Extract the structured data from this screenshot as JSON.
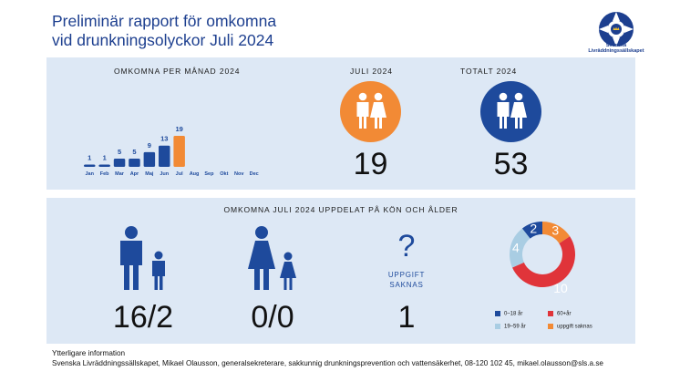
{
  "header": {
    "title_line1": "Preliminär rapport för omkomna",
    "title_line2": "vid drunkningsolyckor Juli 2024",
    "logo_line1": "Svenska",
    "logo_line2": "Livräddningssällskapet",
    "logo_icon": "lifebuoy-crown-icon"
  },
  "top_panel": {
    "monthly_label": "OMKOMNA PER MÅNAD 2024",
    "july_label": "JULI 2024",
    "july_value": "19",
    "total_label": "TOTALT 2024",
    "total_value": "53",
    "july_icon": "man-woman-icon",
    "total_icon": "man-woman-icon"
  },
  "chart_data": [
    {
      "type": "bar",
      "title": "OMKOMNA PER MÅNAD 2024",
      "categories": [
        "Jan",
        "Feb",
        "Mar",
        "Apr",
        "Maj",
        "Jun",
        "Jul",
        "Aug",
        "Sep",
        "Okt",
        "Nov",
        "Dec"
      ],
      "values": [
        1,
        1,
        5,
        5,
        9,
        13,
        19,
        null,
        null,
        null,
        null,
        null
      ],
      "colors": {
        "default": "#1e4a9c",
        "highlight": "#f28a35",
        "label": "#1e4a9c"
      },
      "highlight_category": "Jul",
      "grid": false
    },
    {
      "type": "pie",
      "style": "donut",
      "categories": [
        "0–18 år",
        "19–59 år",
        "60+år",
        "uppgift saknas"
      ],
      "values": [
        2,
        4,
        10,
        3
      ],
      "colors": [
        "#1e4a9c",
        "#a9cde3",
        "#e0343a",
        "#f28a35"
      ],
      "legend_position": "bottom"
    }
  ],
  "bottom_panel": {
    "label": "OMKOMNA JULI 2024 UPPDELAT PÅ KÖN OCH ÅLDER",
    "male_value": "16/2",
    "female_value": "0/0",
    "unknown_symbol": "?",
    "unknown_label_line1": "UPPGIFT",
    "unknown_label_line2": "SAKNAS",
    "unknown_value": "1",
    "male_icon": "man-boy-icon",
    "female_icon": "woman-girl-icon"
  },
  "footer": {
    "line1": "Ytterligare information",
    "line2": "Svenska Livräddningssällskapet, Mikael Olausson, generalsekreterare, sakkunnig drunkningsprevention och vattensäkerhet, 08-120 102 45, mikael.olausson@sls.a.se"
  }
}
